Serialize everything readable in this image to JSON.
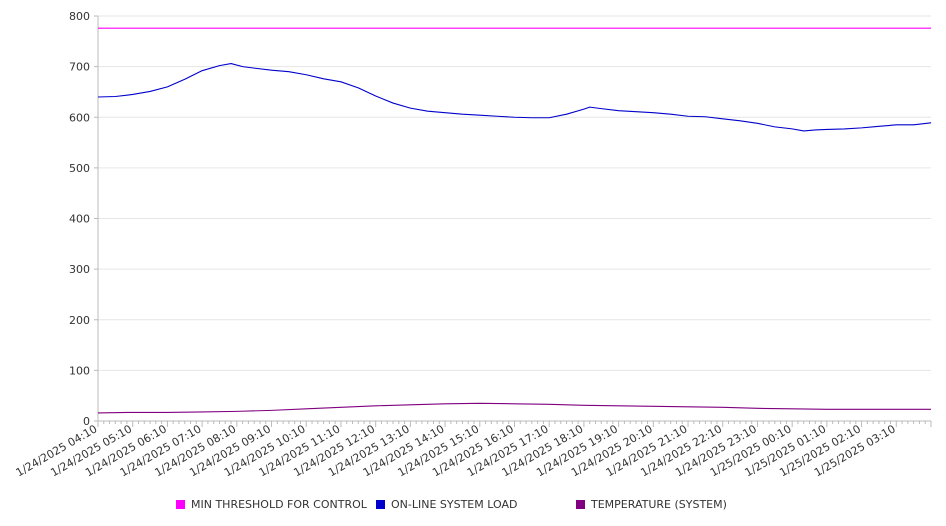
{
  "chart_data": {
    "type": "line",
    "ylim": [
      0,
      800
    ],
    "y_ticks": [
      0,
      100,
      200,
      300,
      400,
      500,
      600,
      700,
      800
    ],
    "x_start": "1/24/2025 04:10",
    "x_end": "1/25/2025 04:10",
    "x_tick_labels": [
      "1/24/2025 04:10",
      "1/24/2025 05:10",
      "1/24/2025 06:10",
      "1/24/2025 07:10",
      "1/24/2025 08:10",
      "1/24/2025 09:10",
      "1/24/2025 10:10",
      "1/24/2025 11:10",
      "1/24/2025 12:10",
      "1/24/2025 13:10",
      "1/24/2025 14:10",
      "1/24/2025 15:10",
      "1/24/2025 16:10",
      "1/24/2025 17:10",
      "1/24/2025 18:10",
      "1/24/2025 19:10",
      "1/24/2025 20:10",
      "1/24/2025 21:10",
      "1/24/2025 22:10",
      "1/24/2025 23:10",
      "1/25/2025 00:10",
      "1/25/2025 01:10",
      "1/25/2025 02:10",
      "1/25/2025 03:10"
    ],
    "grid": "horizontal",
    "legend_position": "bottom",
    "series": [
      {
        "name": "MIN THRESHOLD FOR CONTROL",
        "color": "#ff00ff",
        "points": [
          [
            "1/24/2025 04:10",
            776
          ],
          [
            "1/25/2025 04:10",
            776
          ]
        ]
      },
      {
        "name": "ON-LINE SYSTEM LOAD",
        "color": "#0000cc",
        "points": [
          [
            "1/24/2025 04:10",
            640
          ],
          [
            "1/24/2025 04:40",
            641
          ],
          [
            "1/24/2025 05:10",
            645
          ],
          [
            "1/24/2025 05:40",
            651
          ],
          [
            "1/24/2025 06:10",
            660
          ],
          [
            "1/24/2025 06:40",
            675
          ],
          [
            "1/24/2025 07:10",
            692
          ],
          [
            "1/24/2025 07:40",
            702
          ],
          [
            "1/24/2025 08:00",
            706
          ],
          [
            "1/24/2025 08:20",
            700
          ],
          [
            "1/24/2025 08:40",
            697
          ],
          [
            "1/24/2025 09:10",
            693
          ],
          [
            "1/24/2025 09:40",
            690
          ],
          [
            "1/24/2025 10:10",
            684
          ],
          [
            "1/24/2025 10:40",
            676
          ],
          [
            "1/24/2025 11:10",
            670
          ],
          [
            "1/24/2025 11:40",
            658
          ],
          [
            "1/24/2025 12:10",
            642
          ],
          [
            "1/24/2025 12:40",
            628
          ],
          [
            "1/24/2025 13:10",
            618
          ],
          [
            "1/24/2025 13:40",
            612
          ],
          [
            "1/24/2025 14:10",
            609
          ],
          [
            "1/24/2025 14:40",
            606
          ],
          [
            "1/24/2025 15:10",
            604
          ],
          [
            "1/24/2025 15:40",
            602
          ],
          [
            "1/24/2025 16:10",
            600
          ],
          [
            "1/24/2025 16:40",
            599
          ],
          [
            "1/24/2025 17:10",
            599
          ],
          [
            "1/24/2025 17:40",
            606
          ],
          [
            "1/24/2025 18:10",
            616
          ],
          [
            "1/24/2025 18:20",
            620
          ],
          [
            "1/24/2025 18:40",
            617
          ],
          [
            "1/24/2025 19:10",
            613
          ],
          [
            "1/24/2025 19:40",
            611
          ],
          [
            "1/24/2025 20:10",
            609
          ],
          [
            "1/24/2025 20:40",
            606
          ],
          [
            "1/24/2025 21:10",
            602
          ],
          [
            "1/24/2025 21:40",
            601
          ],
          [
            "1/24/2025 22:10",
            597
          ],
          [
            "1/24/2025 22:40",
            593
          ],
          [
            "1/24/2025 23:10",
            588
          ],
          [
            "1/24/2025 23:40",
            581
          ],
          [
            "1/25/2025 00:10",
            577
          ],
          [
            "1/25/2025 00:30",
            573
          ],
          [
            "1/25/2025 00:50",
            575
          ],
          [
            "1/25/2025 01:10",
            576
          ],
          [
            "1/25/2025 01:40",
            577
          ],
          [
            "1/25/2025 02:10",
            579
          ],
          [
            "1/25/2025 02:40",
            582
          ],
          [
            "1/25/2025 03:10",
            585
          ],
          [
            "1/25/2025 03:40",
            585
          ],
          [
            "1/25/2025 04:10",
            589
          ]
        ]
      },
      {
        "name": "TEMPERATURE (SYSTEM)",
        "color": "#800080",
        "points": [
          [
            "1/24/2025 04:10",
            16
          ],
          [
            "1/24/2025 05:10",
            17
          ],
          [
            "1/24/2025 06:10",
            17
          ],
          [
            "1/24/2025 07:10",
            18
          ],
          [
            "1/24/2025 08:10",
            19
          ],
          [
            "1/24/2025 09:10",
            21
          ],
          [
            "1/24/2025 10:10",
            24
          ],
          [
            "1/24/2025 11:10",
            27
          ],
          [
            "1/24/2025 12:10",
            30
          ],
          [
            "1/24/2025 13:10",
            32
          ],
          [
            "1/24/2025 14:10",
            34
          ],
          [
            "1/24/2025 15:10",
            35
          ],
          [
            "1/24/2025 16:10",
            34
          ],
          [
            "1/24/2025 17:10",
            33
          ],
          [
            "1/24/2025 18:10",
            31
          ],
          [
            "1/24/2025 19:10",
            30
          ],
          [
            "1/24/2025 20:10",
            29
          ],
          [
            "1/24/2025 21:10",
            28
          ],
          [
            "1/24/2025 22:10",
            27
          ],
          [
            "1/24/2025 23:10",
            25
          ],
          [
            "1/25/2025 00:10",
            24
          ],
          [
            "1/25/2025 01:10",
            23
          ],
          [
            "1/25/2025 02:10",
            23
          ],
          [
            "1/25/2025 03:10",
            23
          ],
          [
            "1/25/2025 04:10",
            23
          ]
        ]
      }
    ]
  }
}
